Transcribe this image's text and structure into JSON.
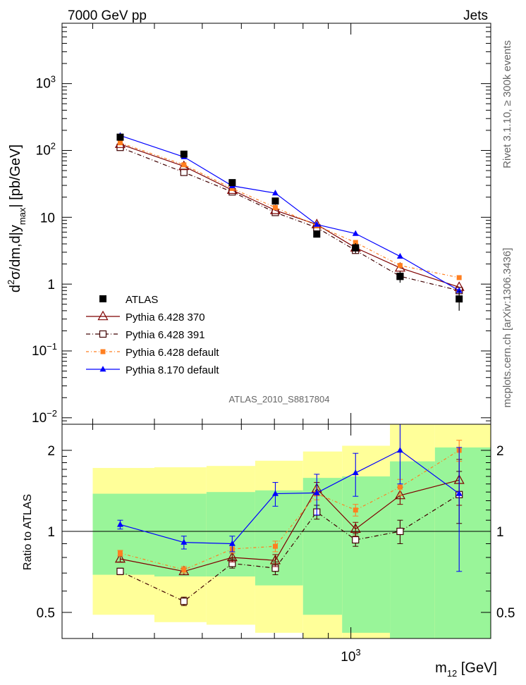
{
  "header": {
    "left": "7000 GeV pp",
    "right": "Jets"
  },
  "side_text": {
    "upper": "Rivet 3.1.10, ≥ 300k events",
    "lower": "mcplots.cern.ch [arXiv:1306.3436]"
  },
  "watermark": "ATLAS_2010_S8817804",
  "axis": {
    "ylabel_main": "d²σ/dm,d|y_max| [pb/GeV]",
    "ylabel_ratio": "Ratio to ATLAS",
    "xlabel": "m12 [GeV]"
  },
  "colors": {
    "band_green": "#99f599",
    "band_yellow": "#ffff99",
    "atlas": "#000000",
    "py370": "#7f0000",
    "py391": "#3f0000",
    "py_default": "#ff7f20",
    "py8": "#0000ff"
  },
  "chart_data": [
    {
      "type": "line",
      "title": "",
      "xlabel": "m12 [GeV]",
      "ylabel": "d2sigma/dm,d|y_max| [pb/GeV]",
      "xscale": "log",
      "yscale": "log",
      "xlim": [
        260,
        1920
      ],
      "ylim": [
        0.008,
        8000
      ],
      "xticks": [
        {
          "value": 1000,
          "label": "10^3"
        }
      ],
      "yticks": [
        {
          "value": 0.01,
          "label": "10^-2"
        },
        {
          "value": 0.1,
          "label": "10^-1"
        },
        {
          "value": 1,
          "label": "1"
        },
        {
          "value": 10,
          "label": "10"
        },
        {
          "value": 100,
          "label": "10^2"
        },
        {
          "value": 1000,
          "label": "10^3"
        }
      ],
      "legend_position": "bottom-left",
      "bins": [
        [
          300,
          400
        ],
        [
          400,
          510
        ],
        [
          510,
          640
        ],
        [
          640,
          800
        ],
        [
          800,
          960
        ],
        [
          960,
          1200
        ],
        [
          1200,
          1480
        ],
        [
          1480,
          1920
        ]
      ],
      "x": [
        341,
        459,
        575,
        703,
        853,
        1022,
        1258,
        1657
      ],
      "series": [
        {
          "name": "ATLAS",
          "marker": "square-filled",
          "values": [
            158,
            88,
            33,
            17.5,
            5.6,
            3.5,
            1.3,
            0.6
          ],
          "err": [
            8,
            5,
            3,
            2,
            0.6,
            0.6,
            0.25,
            0.2
          ]
        },
        {
          "name": "Pythia 6.428 370",
          "marker": "triangle-open",
          "values": [
            124,
            58,
            25.5,
            12.7,
            7.8,
            3.5,
            1.75,
            0.9
          ]
        },
        {
          "name": "Pythia 6.428 391",
          "marker": "square-open",
          "values": [
            111,
            47,
            24,
            11.8,
            7.0,
            3.2,
            1.31,
            0.8
          ]
        },
        {
          "name": "Pythia 6.428 default",
          "marker": "square-filled",
          "values": [
            130,
            61,
            27,
            14,
            7.5,
            4.2,
            1.9,
            1.25
          ]
        },
        {
          "name": "Pythia 8.170 default",
          "marker": "triangle-filled",
          "values": [
            167,
            80,
            29.5,
            23,
            7.8,
            5.7,
            2.6,
            0.8
          ]
        }
      ]
    },
    {
      "type": "line",
      "title": "",
      "xlabel": "m12 [GeV]",
      "ylabel": "Ratio to ATLAS",
      "xscale": "log",
      "yscale": "log",
      "xlim": [
        260,
        1920
      ],
      "ylim": [
        0.4,
        2.5
      ],
      "yticks": [
        {
          "value": 0.5,
          "label": "0.5"
        },
        {
          "value": 1,
          "label": "1"
        },
        {
          "value": 2,
          "label": "2"
        }
      ],
      "reference_line": 1,
      "bands": {
        "green": [
          [
            0.69,
            1.38
          ],
          [
            0.68,
            1.38
          ],
          [
            0.68,
            1.4
          ],
          [
            0.63,
            1.42
          ],
          [
            0.49,
            1.58
          ],
          [
            0.42,
            1.6
          ],
          [
            0.35,
            1.82
          ],
          [
            0.35,
            2.05
          ]
        ],
        "yellow": [
          [
            0.49,
            1.72
          ],
          [
            0.46,
            1.73
          ],
          [
            0.45,
            1.75
          ],
          [
            0.42,
            1.83
          ],
          [
            0.32,
            1.98
          ],
          [
            0.3,
            2.08
          ],
          [
            0.25,
            2.5
          ],
          [
            0.25,
            2.5
          ]
        ]
      },
      "x": [
        341,
        459,
        575,
        703,
        853,
        1022,
        1258,
        1657
      ],
      "series": [
        {
          "name": "Pythia 6.428 370",
          "values": [
            0.79,
            0.71,
            0.8,
            0.78,
            1.44,
            1.02,
            1.36,
            1.55
          ],
          "err": [
            0.02,
            0.02,
            0.03,
            0.04,
            0.08,
            0.06,
            0.1,
            0.3
          ]
        },
        {
          "name": "Pythia 6.428 391",
          "values": [
            0.71,
            0.55,
            0.76,
            0.73,
            1.18,
            0.93,
            1.0,
            1.37
          ],
          "err": [
            0.02,
            0.02,
            0.03,
            0.04,
            0.07,
            0.05,
            0.1,
            0.3
          ]
        },
        {
          "name": "Pythia 6.428 default",
          "values": [
            0.83,
            0.72,
            0.86,
            0.88,
            1.38,
            1.2,
            1.46,
            2.0
          ],
          "err": [
            0.02,
            0.02,
            0.03,
            0.04,
            0.07,
            0.06,
            0.1,
            0.18
          ]
        },
        {
          "name": "Pythia 8.170 default",
          "values": [
            1.06,
            0.91,
            0.9,
            1.38,
            1.39,
            1.65,
            2.0,
            1.38
          ],
          "err": [
            0.04,
            0.05,
            0.06,
            0.14,
            0.24,
            0.3,
            0.5,
            0.67
          ]
        }
      ]
    }
  ]
}
